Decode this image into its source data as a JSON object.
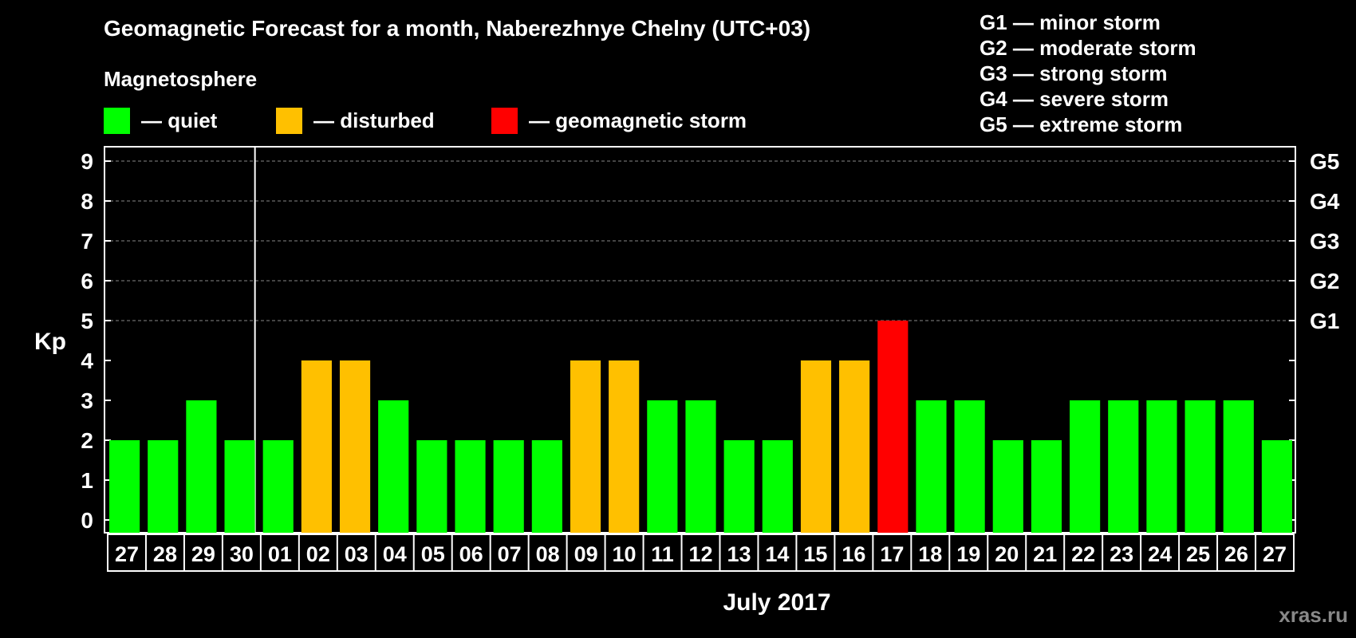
{
  "header": {
    "title": "Geomagnetic Forecast for a month, Naberezhnye Chelny (UTC+03)",
    "magnetosphere_label": "Magnetosphere"
  },
  "legend": [
    {
      "label": "— quiet",
      "color": "#00ff00"
    },
    {
      "label": "— disturbed",
      "color": "#ffc000"
    },
    {
      "label": "— geomagnetic storm",
      "color": "#ff0000"
    }
  ],
  "storm_scale": [
    "G1 — minor storm",
    "G2 — moderate storm",
    "G3 — strong storm",
    "G4 — severe storm",
    "G5 — extreme storm"
  ],
  "watermark": "xras.ru",
  "chart_data": {
    "type": "bar",
    "title": "Geomagnetic Forecast for a month, Naberezhnye Chelny (UTC+03)",
    "ylabel": "Kp",
    "xlabel": "July 2017",
    "ylim": [
      0,
      9
    ],
    "yticks": [
      0,
      1,
      2,
      3,
      4,
      5,
      6,
      7,
      8,
      9
    ],
    "grid": "dashed lines at 5-9",
    "grid_levels": [
      5,
      6,
      7,
      8,
      9
    ],
    "right_axis_labels": [
      {
        "value": 5,
        "label": "G1"
      },
      {
        "value": 6,
        "label": "G2"
      },
      {
        "value": 7,
        "label": "G3"
      },
      {
        "value": 8,
        "label": "G4"
      },
      {
        "value": 9,
        "label": "G5"
      }
    ],
    "month_separator_after_index": 3,
    "categories": [
      "27",
      "28",
      "29",
      "30",
      "01",
      "02",
      "03",
      "04",
      "05",
      "06",
      "07",
      "08",
      "09",
      "10",
      "11",
      "12",
      "13",
      "14",
      "15",
      "16",
      "17",
      "18",
      "19",
      "20",
      "21",
      "22",
      "23",
      "24",
      "25",
      "26",
      "27"
    ],
    "values": [
      2,
      2,
      3,
      2,
      2,
      4,
      4,
      3,
      2,
      2,
      2,
      2,
      4,
      4,
      3,
      3,
      2,
      2,
      4,
      4,
      5,
      3,
      3,
      2,
      2,
      3,
      3,
      3,
      3,
      3,
      2
    ],
    "status": [
      "quiet",
      "quiet",
      "quiet",
      "quiet",
      "quiet",
      "disturbed",
      "disturbed",
      "quiet",
      "quiet",
      "quiet",
      "quiet",
      "quiet",
      "disturbed",
      "disturbed",
      "quiet",
      "quiet",
      "quiet",
      "quiet",
      "disturbed",
      "disturbed",
      "storm",
      "quiet",
      "quiet",
      "quiet",
      "quiet",
      "quiet",
      "quiet",
      "quiet",
      "quiet",
      "quiet",
      "quiet"
    ],
    "colors": {
      "quiet": "#00ff00",
      "disturbed": "#ffc000",
      "storm": "#ff0000"
    }
  }
}
